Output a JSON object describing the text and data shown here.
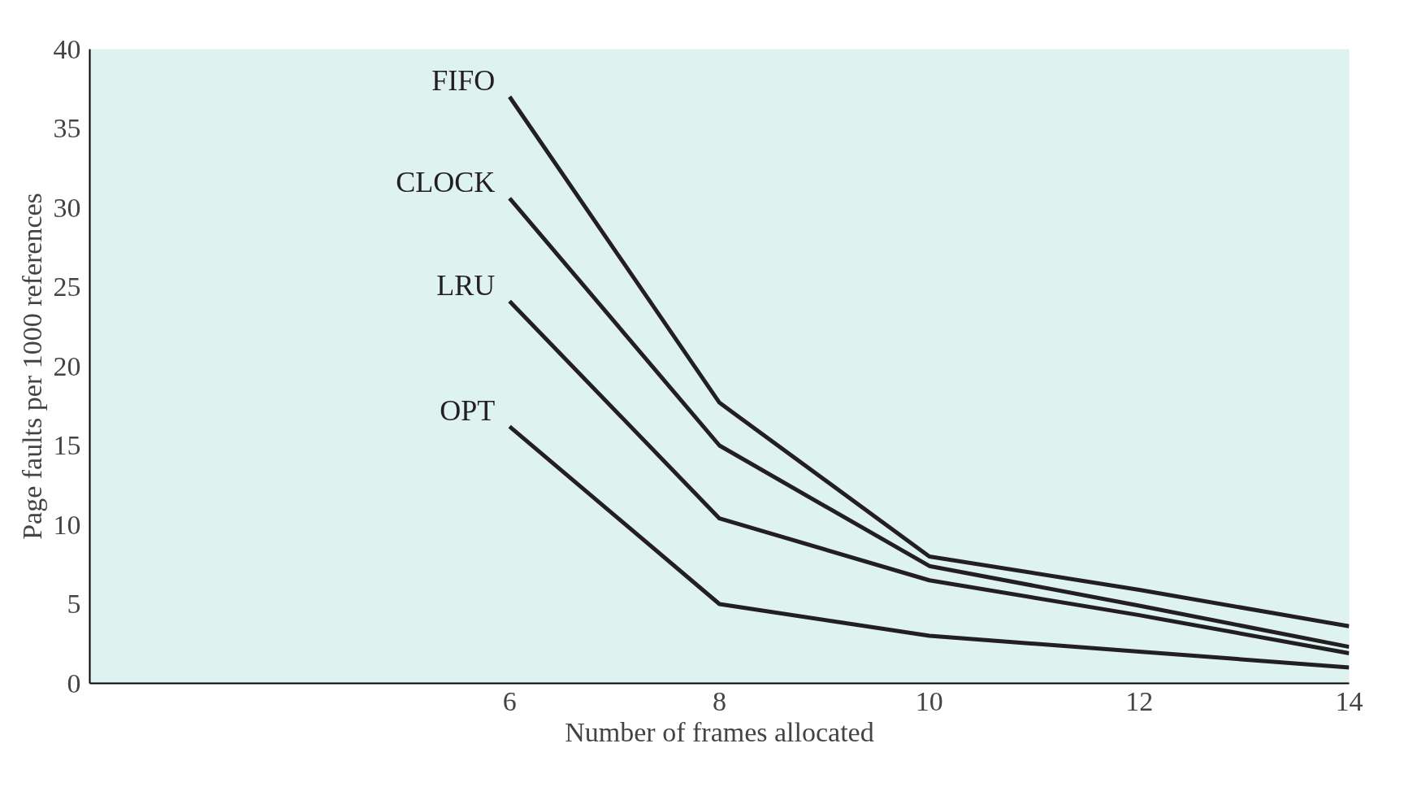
{
  "chart_data": {
    "type": "line",
    "xlabel": "Number of frames allocated",
    "ylabel": "Page faults per 1000 references",
    "x": [
      6,
      8,
      10,
      12,
      14
    ],
    "series": [
      {
        "name": "FIFO",
        "color": "#231f20",
        "values": [
          37,
          17.7,
          8.0,
          5.9,
          3.6
        ]
      },
      {
        "name": "CLOCK",
        "color": "#231f20",
        "values": [
          30.6,
          15.0,
          7.4,
          4.9,
          2.3
        ]
      },
      {
        "name": "LRU",
        "color": "#231f20",
        "values": [
          24.1,
          10.4,
          6.5,
          4.3,
          1.9
        ]
      },
      {
        "name": "OPT",
        "color": "#231f20",
        "values": [
          16.2,
          5.0,
          3.0,
          2.0,
          1.0
        ]
      }
    ],
    "xlim": [
      2,
      14
    ],
    "ylim": [
      0,
      40
    ],
    "xticks": [
      6,
      8,
      10,
      12,
      14
    ],
    "yticks": [
      0,
      5,
      10,
      15,
      20,
      25,
      30,
      35,
      40
    ],
    "grid": false,
    "marker": "none",
    "line_style": "solid"
  }
}
